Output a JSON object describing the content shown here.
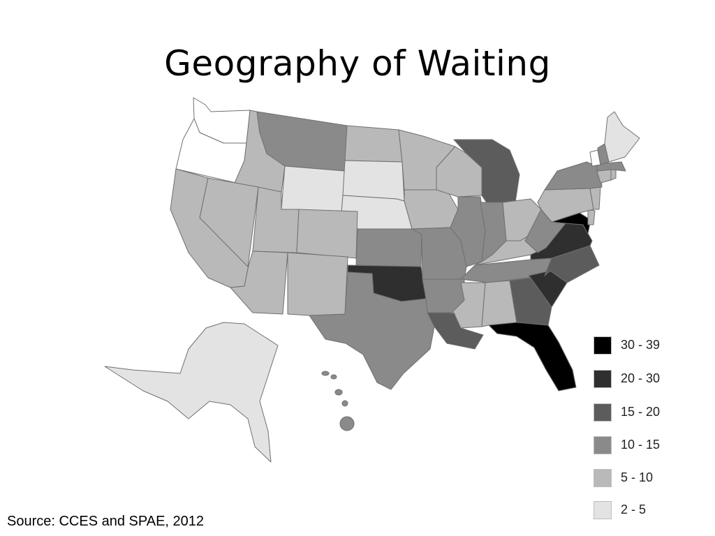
{
  "title": "Geography of Waiting",
  "source": "Source:  CCES and SPAE, 2012",
  "colors": {
    "30-39": "#000000",
    "20-30": "#2f2f2f",
    "15-20": "#5c5c5c",
    "10-15": "#8a8a8a",
    "5-10": "#b9b9b9",
    "2-5": "#e3e3e3",
    "white": "#ffffff",
    "border": "#6f6f6f"
  },
  "legend": [
    {
      "label": "30 - 39",
      "bin": "30-39"
    },
    {
      "label": "20 - 30",
      "bin": "20-30"
    },
    {
      "label": "15 - 20",
      "bin": "15-20"
    },
    {
      "label": "10 - 15",
      "bin": "10-15"
    },
    {
      "label": "5 - 10",
      "bin": "5-10"
    },
    {
      "label": "2 - 5",
      "bin": "2-5"
    }
  ],
  "state_bins": {
    "WA": "white",
    "OR": "white",
    "ID": "5-10",
    "MT": "10-15",
    "WY": "2-5",
    "ND": "5-10",
    "SD": "2-5",
    "NE": "2-5",
    "MN": "5-10",
    "WI": "5-10",
    "MI": "15-20",
    "IA": "5-10",
    "CA": "5-10",
    "NV": "5-10",
    "UT": "5-10",
    "AZ": "5-10",
    "CO": "5-10",
    "NM": "5-10",
    "TX": "10-15",
    "OK": "20-30",
    "KS": "10-15",
    "MO": "10-15",
    "AR": "10-15",
    "LA": "15-20",
    "MS": "5-10",
    "AL": "5-10",
    "GA": "15-20",
    "FL": "30-39",
    "SC": "20-30",
    "NC": "15-20",
    "TN": "10-15",
    "KY": "5-10",
    "IL": "10-15",
    "IN": "10-15",
    "OH": "5-10",
    "WV": "10-15",
    "VA": "20-30",
    "MD": "30-39",
    "DE": "5-10",
    "NJ": "5-10",
    "PA": "5-10",
    "NY": "10-15",
    "CT": "5-10",
    "RI": "5-10",
    "MA": "10-15",
    "VT": "white",
    "NH": "10-15",
    "ME": "2-5",
    "AK": "2-5",
    "HI": "10-15"
  }
}
